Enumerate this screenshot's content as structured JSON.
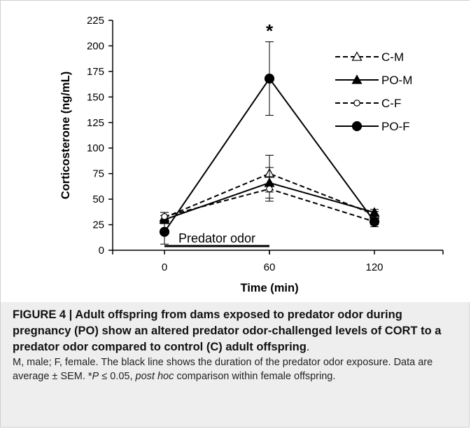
{
  "chart_data": {
    "type": "line",
    "x": [
      0,
      60,
      120
    ],
    "xlabel": "Time (min)",
    "ylabel": "Corticosterone (ng/mL)",
    "ylim": [
      0,
      225
    ],
    "yticks": [
      0,
      25,
      50,
      75,
      100,
      125,
      150,
      175,
      200,
      225
    ],
    "xtick_labels": [
      "0",
      "60",
      "120"
    ],
    "legend_position": "top-right",
    "series": [
      {
        "name": "C-M",
        "values": [
          32,
          75,
          35
        ],
        "errors": [
          5,
          18,
          3
        ],
        "line_style": "dashed",
        "marker": "open-triangle"
      },
      {
        "name": "PO-M",
        "values": [
          30,
          66,
          37
        ],
        "errors": [
          4,
          15,
          3
        ],
        "line_style": "solid",
        "marker": "filled-triangle"
      },
      {
        "name": "C-F",
        "values": [
          33,
          60,
          28
        ],
        "errors": [
          4,
          12,
          3
        ],
        "line_style": "dashed",
        "marker": "open-circle"
      },
      {
        "name": "PO-F",
        "values": [
          18,
          168,
          28
        ],
        "errors": [
          12,
          36,
          5
        ],
        "line_style": "solid",
        "marker": "filled-circle"
      }
    ],
    "annotations": [
      {
        "text": "*",
        "x": 60,
        "y": 215
      },
      {
        "text": "Predator odor",
        "x": 30,
        "y": 10
      }
    ],
    "bar_annotation": {
      "x_start": 0,
      "x_end": 60,
      "label": "Predator odor"
    }
  },
  "caption": {
    "title": "FIGURE 4 | Adult offspring from dams exposed to predator odor during pregnancy (PO) show an altered predator odor-challenged levels of CORT to a predator odor compared to control (C) adult offspring",
    "title_end": ".",
    "body_a": "M, male; F, female. The black line shows the duration of the predator odor exposure. Data are average ± SEM. *",
    "body_p": "P",
    "body_b": " ≤ 0.05, ",
    "body_posthoc": "post hoc",
    "body_c": " comparison within female offspring."
  }
}
